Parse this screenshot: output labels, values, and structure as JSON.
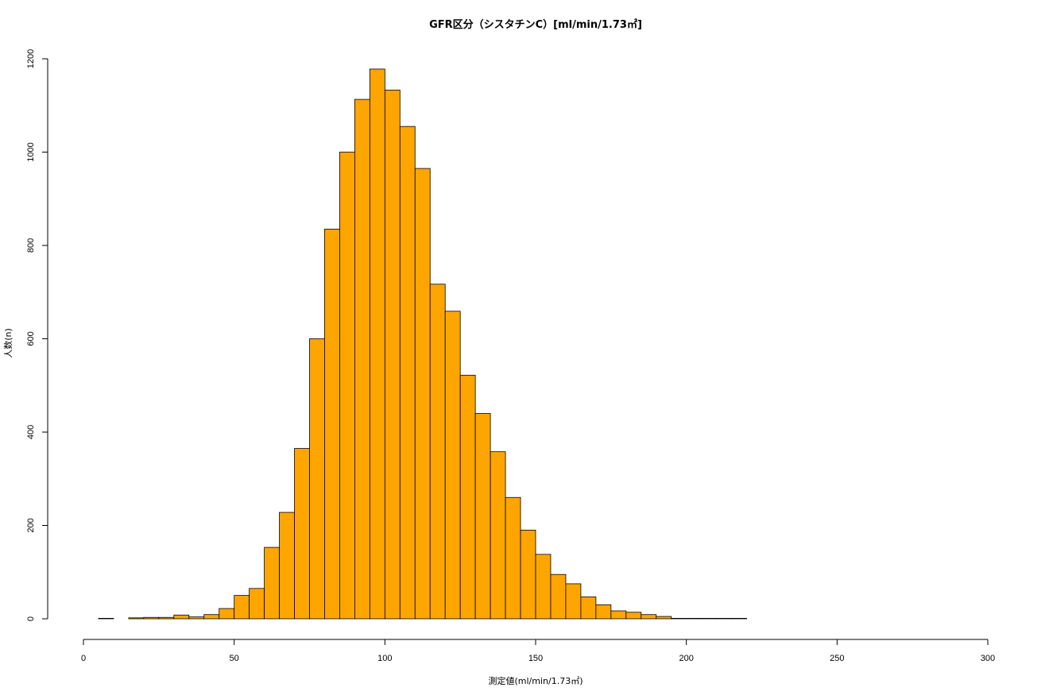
{
  "chart_data": {
    "type": "bar",
    "title": "GFR区分（シスタチンC）[ml/min/1.73㎡]",
    "xlabel": "測定値(ml/min/1.73㎡)",
    "ylabel": "人数(n)",
    "xlim": [
      0,
      300
    ],
    "ylim": [
      0,
      1200
    ],
    "x_ticks": [
      0,
      50,
      100,
      150,
      200,
      250,
      300
    ],
    "y_ticks": [
      0,
      200,
      400,
      600,
      800,
      1000,
      1200
    ],
    "bin_width": 5,
    "bar_color": "#FFA500",
    "grid": false,
    "bins_start": [
      5,
      10,
      15,
      20,
      25,
      30,
      35,
      40,
      45,
      50,
      55,
      60,
      65,
      70,
      75,
      80,
      85,
      90,
      95,
      100,
      105,
      110,
      115,
      120,
      125,
      130,
      135,
      140,
      145,
      150,
      155,
      160,
      165,
      170,
      175,
      180,
      185,
      190,
      195,
      200,
      205,
      210,
      215
    ],
    "values": [
      1,
      0,
      2,
      3,
      3,
      8,
      4,
      9,
      22,
      50,
      65,
      153,
      228,
      365,
      600,
      835,
      1000,
      1113,
      1178,
      1133,
      1055,
      965,
      717,
      659,
      522,
      440,
      358,
      260,
      190,
      138,
      95,
      75,
      47,
      30,
      17,
      14,
      9,
      5,
      1,
      1,
      1,
      1,
      1
    ]
  }
}
